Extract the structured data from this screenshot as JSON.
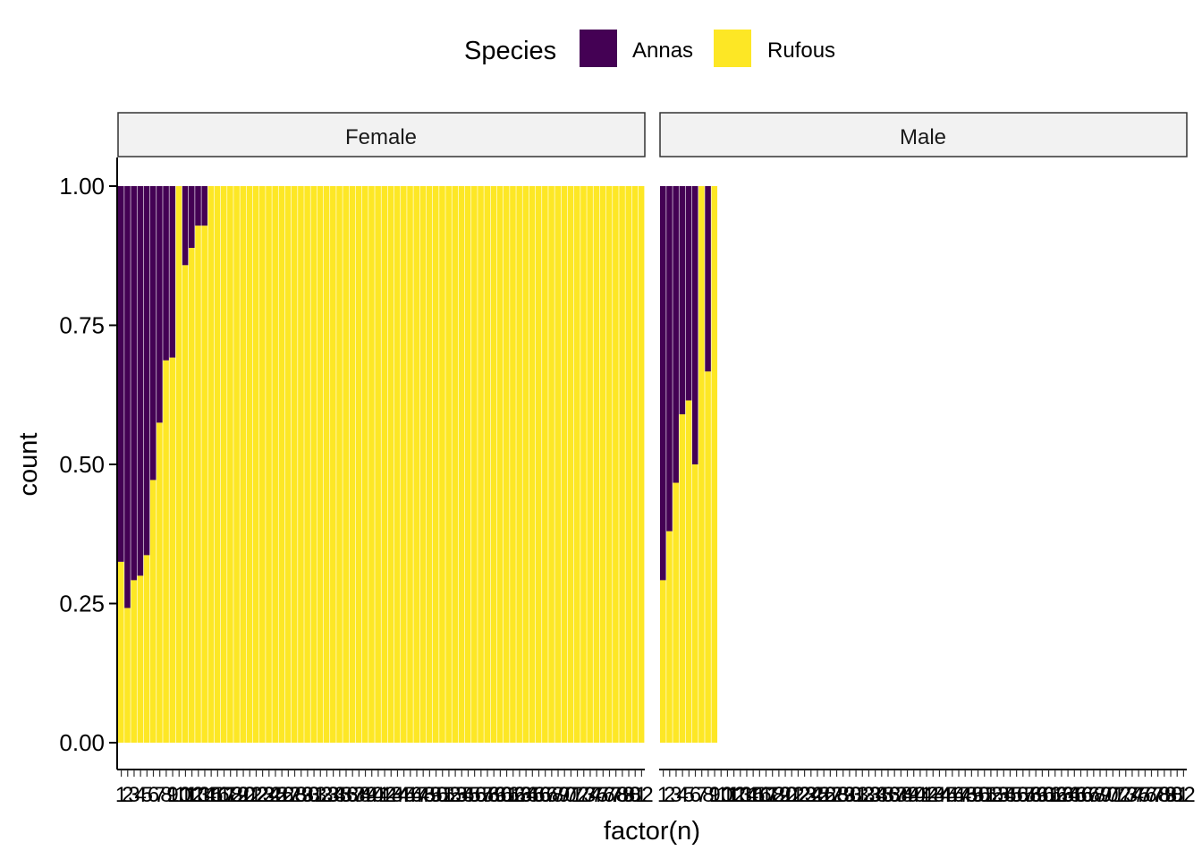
{
  "chart_data": {
    "type": "bar",
    "position": "fill",
    "xlabel": "factor(n)",
    "ylabel": "count",
    "ylim": [
      0,
      1
    ],
    "y_ticks": [
      "0.00",
      "0.25",
      "0.50",
      "0.75",
      "1.00"
    ],
    "grid": false,
    "legend": {
      "title": "Species",
      "placement": "top",
      "entries": [
        {
          "name": "Annas",
          "color": "#440154"
        },
        {
          "name": "Rufous",
          "color": "#FDE725"
        }
      ]
    },
    "categories_count": 82,
    "categories_note": "x axis categories are levels 1 to 82 of factor(n)",
    "panels": [
      {
        "strip": "Female",
        "annas_fraction": [
          0.675,
          0.758,
          0.708,
          0.7,
          0.663,
          0.528,
          0.425,
          0.313,
          0.308,
          0,
          0.142,
          0.111,
          0.071,
          0.071
        ]
      },
      {
        "strip": "Male",
        "annas_fraction": [
          0.708,
          0.62,
          0.533,
          0.41,
          0.385,
          0.5,
          0,
          0.333,
          0
        ]
      }
    ]
  }
}
